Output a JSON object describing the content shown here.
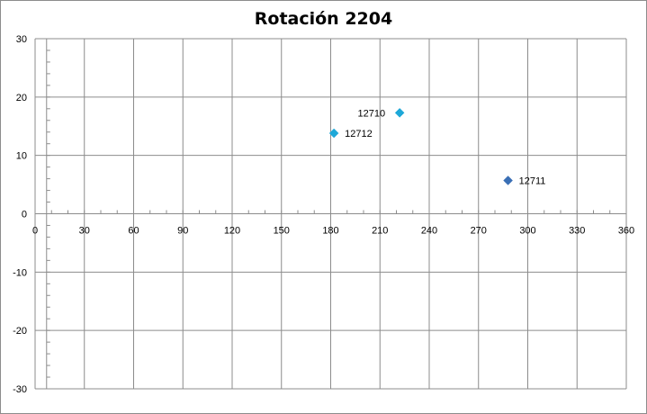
{
  "chart_data": {
    "type": "scatter",
    "title": "Rotación 2204",
    "xlabel": "",
    "ylabel": "",
    "xlim": [
      0,
      360
    ],
    "ylim": [
      -30,
      30
    ],
    "x_ticks": [
      0,
      30,
      60,
      90,
      120,
      150,
      180,
      210,
      240,
      270,
      300,
      330,
      360
    ],
    "y_ticks": [
      30,
      20,
      10,
      0,
      -10,
      -20,
      -30
    ],
    "grid": true,
    "legend": "none",
    "points": [
      {
        "label": "12710",
        "x": 222,
        "y": 17.3,
        "color": "#1EA8D8",
        "label_side": "left"
      },
      {
        "label": "12712",
        "x": 182,
        "y": 13.8,
        "color": "#1EA8D8",
        "label_side": "right"
      },
      {
        "label": "12711",
        "x": 288,
        "y": 5.7,
        "color": "#3A6FB5",
        "label_side": "right"
      }
    ]
  }
}
